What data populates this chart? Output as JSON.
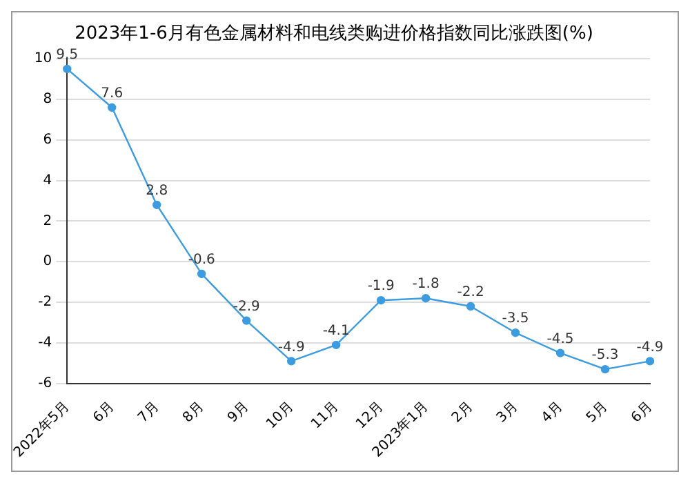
{
  "chart_data": {
    "type": "line",
    "title": "2023年1-6月有色金属材料和电线类购进价格指数同比涨跌图(%)",
    "categories": [
      "2022年5月",
      "6月",
      "7月",
      "8月",
      "9月",
      "10月",
      "11月",
      "12月",
      "2023年1月",
      "2月",
      "3月",
      "4月",
      "5月",
      "6月"
    ],
    "series": [
      {
        "color": "#3d9be0",
        "values": [
          9.5,
          7.6,
          2.8,
          -0.6,
          -2.9,
          -4.9,
          -4.1,
          -1.9,
          -1.8,
          -2.2,
          -3.5,
          -4.5,
          -5.3,
          -4.9
        ]
      }
    ],
    "ylim": [
      -6,
      10
    ],
    "yticks": [
      -6,
      -4,
      -2,
      0,
      2,
      4,
      6,
      8,
      10
    ],
    "grid": "y",
    "marker": "circle",
    "line_style": "solid",
    "data_labels": true,
    "legend": false
  }
}
